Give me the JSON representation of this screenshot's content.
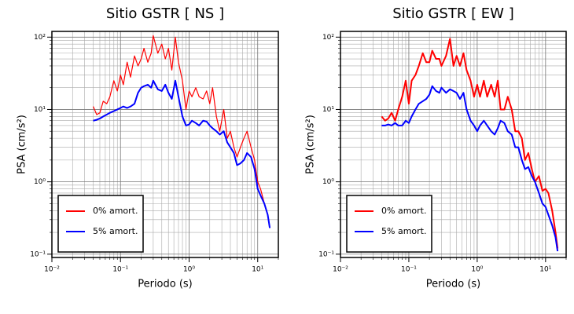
{
  "chart_data": [
    {
      "type": "line",
      "title": "Sitio GSTR [ NS ]",
      "x_label": "Periodo (s)",
      "y_label": "PSA (cm/s²)",
      "log_x": true,
      "log_y": true,
      "grid": true,
      "legend": "lower left",
      "xlim": [
        0.01,
        20
      ],
      "ylim": [
        0.09,
        120
      ],
      "xticks": [
        {
          "value": 0.01,
          "label": "10⁻²"
        },
        {
          "value": 0.1,
          "label": "10⁻¹"
        },
        {
          "value": 1,
          "label": "10⁰"
        },
        {
          "value": 10,
          "label": "10¹"
        }
      ],
      "yticks": [
        {
          "value": 0.1,
          "label": "10⁻¹"
        },
        {
          "value": 1,
          "label": "10⁰"
        },
        {
          "value": 10,
          "label": "10¹"
        },
        {
          "value": 100,
          "label": "10²"
        }
      ],
      "x_minor_ticks": [
        0.02,
        0.03,
        0.04,
        0.05,
        0.06,
        0.07,
        0.08,
        0.09,
        0.2,
        0.3,
        0.4,
        0.5,
        0.6,
        0.7,
        0.8,
        0.9,
        2,
        3,
        4,
        5,
        6,
        7,
        8,
        9,
        20
      ],
      "y_minor_ticks": [
        0.2,
        0.3,
        0.4,
        0.5,
        0.6,
        0.7,
        0.8,
        0.9,
        2,
        3,
        4,
        5,
        6,
        7,
        8,
        9,
        20,
        30,
        40,
        50,
        60,
        70,
        80,
        90
      ],
      "x": [
        0.04,
        0.045,
        0.05,
        0.056,
        0.063,
        0.07,
        0.08,
        0.09,
        0.1,
        0.11,
        0.125,
        0.14,
        0.16,
        0.18,
        0.2,
        0.22,
        0.25,
        0.28,
        0.3,
        0.35,
        0.4,
        0.45,
        0.5,
        0.56,
        0.63,
        0.7,
        0.8,
        0.9,
        1,
        1.1,
        1.25,
        1.4,
        1.6,
        1.8,
        2,
        2.2,
        2.5,
        2.8,
        3.2,
        3.6,
        4,
        4.5,
        5,
        5.6,
        6.3,
        7,
        8,
        9,
        10,
        11,
        12.5,
        14,
        15
      ],
      "series": [
        {
          "name": "0% amort.",
          "color": "#ff0000",
          "width": 1.2,
          "values": [
            11,
            8.5,
            9,
            13,
            12,
            15,
            25,
            18,
            30,
            22,
            45,
            28,
            55,
            40,
            50,
            70,
            45,
            60,
            105,
            60,
            80,
            50,
            70,
            35,
            100,
            45,
            25,
            10,
            18,
            15,
            20,
            15,
            14,
            18,
            12,
            20,
            8,
            5,
            10,
            4,
            5,
            3,
            2.2,
            3,
            4,
            5,
            3,
            2,
            1,
            0.8,
            0.5,
            0.35,
            0.23
          ]
        },
        {
          "name": "5% amort.",
          "color": "#0000ff",
          "width": 2,
          "values": [
            7,
            7.2,
            7.5,
            8,
            8.5,
            9,
            9.5,
            10,
            10.5,
            11,
            10.5,
            11,
            12,
            17,
            20,
            21,
            22,
            20,
            25,
            19,
            18,
            22,
            17,
            14,
            25,
            15,
            8,
            6,
            6.2,
            7,
            6.5,
            6,
            7,
            6.8,
            6,
            5.5,
            5,
            4.5,
            5,
            3.5,
            3,
            2.5,
            1.7,
            1.8,
            2,
            2.5,
            2.2,
            1.5,
            0.8,
            0.65,
            0.5,
            0.35,
            0.23
          ]
        }
      ]
    },
    {
      "type": "line",
      "title": "Sitio GSTR [ EW ]",
      "x_label": "Periodo (s)",
      "y_label": "PSA (cm/s²)",
      "log_x": true,
      "log_y": true,
      "grid": true,
      "legend": "lower left",
      "xlim": [
        0.01,
        20
      ],
      "ylim": [
        0.09,
        120
      ],
      "xticks": [
        {
          "value": 0.01,
          "label": "10⁻²"
        },
        {
          "value": 0.1,
          "label": "10⁻¹"
        },
        {
          "value": 1,
          "label": "10⁰"
        },
        {
          "value": 10,
          "label": "10¹"
        }
      ],
      "yticks": [
        {
          "value": 0.1,
          "label": "10⁻¹"
        },
        {
          "value": 1,
          "label": "10⁰"
        },
        {
          "value": 10,
          "label": "10¹"
        },
        {
          "value": 100,
          "label": "10²"
        }
      ],
      "x_minor_ticks": [
        0.02,
        0.03,
        0.04,
        0.05,
        0.06,
        0.07,
        0.08,
        0.09,
        0.2,
        0.3,
        0.4,
        0.5,
        0.6,
        0.7,
        0.8,
        0.9,
        2,
        3,
        4,
        5,
        6,
        7,
        8,
        9,
        20
      ],
      "y_minor_ticks": [
        0.2,
        0.3,
        0.4,
        0.5,
        0.6,
        0.7,
        0.8,
        0.9,
        2,
        3,
        4,
        5,
        6,
        7,
        8,
        9,
        20,
        30,
        40,
        50,
        60,
        70,
        80,
        90
      ],
      "x": [
        0.04,
        0.045,
        0.05,
        0.056,
        0.063,
        0.07,
        0.08,
        0.09,
        0.1,
        0.11,
        0.125,
        0.14,
        0.16,
        0.18,
        0.2,
        0.22,
        0.25,
        0.28,
        0.3,
        0.35,
        0.4,
        0.45,
        0.5,
        0.56,
        0.63,
        0.7,
        0.8,
        0.9,
        1,
        1.1,
        1.25,
        1.4,
        1.6,
        1.8,
        2,
        2.2,
        2.5,
        2.8,
        3.2,
        3.6,
        4,
        4.5,
        5,
        5.6,
        6.3,
        7,
        8,
        9,
        10,
        11,
        12.5,
        14,
        15
      ],
      "series": [
        {
          "name": "0% amort.",
          "color": "#ff0000",
          "width": 2,
          "values": [
            8,
            7,
            7.5,
            9,
            7,
            10,
            15,
            25,
            12,
            25,
            30,
            40,
            60,
            45,
            45,
            65,
            50,
            50,
            40,
            55,
            95,
            40,
            55,
            40,
            60,
            35,
            25,
            15,
            22,
            15,
            25,
            15,
            22,
            15,
            25,
            10,
            10,
            15,
            10,
            5,
            5,
            4,
            2,
            2.5,
            1.5,
            1,
            1.2,
            0.75,
            0.8,
            0.7,
            0.4,
            0.2,
            0.12
          ]
        },
        {
          "name": "5% amort.",
          "color": "#0000ff",
          "width": 2,
          "values": [
            6,
            6,
            6.2,
            6,
            6.5,
            6,
            6,
            7,
            6.5,
            8,
            10,
            12,
            13,
            14,
            16,
            21,
            18,
            17,
            20,
            17,
            19,
            18,
            17,
            14,
            17,
            10,
            7,
            6,
            5,
            6,
            7,
            6,
            5,
            4.5,
            5.5,
            7,
            6.5,
            5,
            4.5,
            3,
            3,
            2,
            1.5,
            1.6,
            1.2,
            1,
            0.7,
            0.5,
            0.45,
            0.35,
            0.25,
            0.17,
            0.11
          ]
        }
      ]
    }
  ]
}
